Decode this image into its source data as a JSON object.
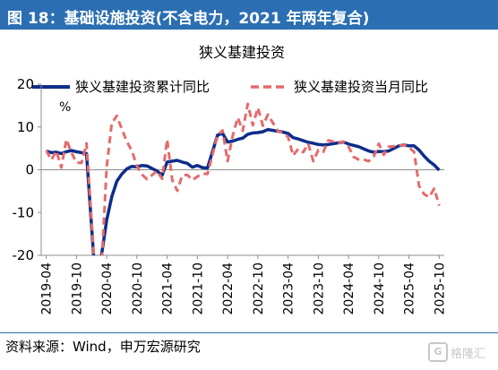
{
  "figure_title": "图 18：基础设施投资(不含电力，2021 年两年复合)",
  "source_note": "资料来源：Wind，申万宏源研究",
  "watermark": {
    "text": "格隆汇",
    "mark": "G"
  },
  "colors": {
    "header_bg": "#2b6fb2",
    "series1": "#0d2d8a",
    "series2": "#e46b6b"
  },
  "chart_data": {
    "type": "line",
    "title": "狭义基建投资",
    "ylabel": "%",
    "ylim": [
      -20,
      20
    ],
    "yticks": [
      -20,
      -10,
      0,
      10,
      20
    ],
    "xlim": [
      "2019-03",
      "2025-11"
    ],
    "xticks": [
      "2019-04",
      "2019-10",
      "2020-04",
      "2020-10",
      "2021-04",
      "2021-10",
      "2022-04",
      "2022-10",
      "2023-04",
      "2023-10",
      "2024-04",
      "2024-10",
      "2025-04",
      "2025-10"
    ],
    "legend_position": "top",
    "series": [
      {
        "name": "狭义基建投资累计同比",
        "style": "solid",
        "x": [
          "2019-04",
          "2019-05",
          "2019-06",
          "2019-07",
          "2019-08",
          "2019-09",
          "2019-10",
          "2019-11",
          "2019-12",
          "2020-02",
          "2020-03",
          "2020-04",
          "2020-05",
          "2020-06",
          "2020-07",
          "2020-08",
          "2020-09",
          "2020-10",
          "2020-11",
          "2020-12",
          "2021-02",
          "2021-03",
          "2021-04",
          "2021-05",
          "2021-06",
          "2021-07",
          "2021-08",
          "2021-09",
          "2021-10",
          "2021-11",
          "2021-12",
          "2022-02",
          "2022-03",
          "2022-04",
          "2022-05",
          "2022-06",
          "2022-07",
          "2022-08",
          "2022-09",
          "2022-10",
          "2022-11",
          "2022-12",
          "2023-02",
          "2023-03",
          "2023-04",
          "2023-05",
          "2023-06",
          "2023-07",
          "2023-08",
          "2023-09",
          "2023-10",
          "2023-11",
          "2023-12",
          "2024-02",
          "2024-03",
          "2024-04",
          "2024-05",
          "2024-06",
          "2024-07",
          "2024-08",
          "2024-09",
          "2024-10",
          "2024-11",
          "2024-12",
          "2025-02",
          "2025-03",
          "2025-04",
          "2025-05",
          "2025-06",
          "2025-07",
          "2025-08",
          "2025-09",
          "2025-10"
        ],
        "values": [
          4.4,
          4.0,
          4.1,
          3.8,
          4.2,
          4.5,
          4.2,
          4.0,
          3.8,
          -30.3,
          -19.7,
          -11.8,
          -6.3,
          -2.7,
          -1.0,
          0.2,
          0.8,
          0.7,
          1.0,
          0.9,
          -0.3,
          -1.3,
          1.8,
          2.0,
          2.2,
          1.8,
          1.5,
          0.6,
          1.0,
          0.5,
          0.4,
          8.1,
          8.5,
          6.5,
          6.7,
          7.1,
          7.4,
          8.3,
          8.6,
          8.7,
          8.9,
          9.4,
          9.0,
          8.8,
          8.5,
          7.5,
          7.2,
          6.8,
          6.4,
          6.2,
          5.9,
          5.8,
          5.9,
          6.3,
          6.5,
          6.0,
          5.7,
          5.4,
          4.9,
          4.4,
          4.1,
          4.3,
          4.2,
          4.4,
          5.6,
          5.8,
          5.6,
          5.6,
          4.6,
          3.2,
          2.0,
          1.1,
          -0.1
        ]
      },
      {
        "name": "狭义基建投资当月同比",
        "style": "dashed",
        "x": [
          "2019-04",
          "2019-05",
          "2019-06",
          "2019-07",
          "2019-08",
          "2019-09",
          "2019-10",
          "2019-11",
          "2019-12",
          "2020-02",
          "2020-03",
          "2020-04",
          "2020-05",
          "2020-06",
          "2020-07",
          "2020-08",
          "2020-09",
          "2020-10",
          "2020-11",
          "2020-12",
          "2021-02",
          "2021-03",
          "2021-04",
          "2021-05",
          "2021-06",
          "2021-07",
          "2021-08",
          "2021-09",
          "2021-10",
          "2021-11",
          "2021-12",
          "2022-02",
          "2022-03",
          "2022-04",
          "2022-05",
          "2022-06",
          "2022-07",
          "2022-08",
          "2022-09",
          "2022-10",
          "2022-11",
          "2022-12",
          "2023-02",
          "2023-03",
          "2023-04",
          "2023-05",
          "2023-06",
          "2023-07",
          "2023-08",
          "2023-09",
          "2023-10",
          "2023-11",
          "2023-12",
          "2024-02",
          "2024-03",
          "2024-04",
          "2024-05",
          "2024-06",
          "2024-07",
          "2024-08",
          "2024-09",
          "2024-10",
          "2024-11",
          "2024-12",
          "2025-02",
          "2025-03",
          "2025-04",
          "2025-05",
          "2025-06",
          "2025-07",
          "2025-08",
          "2025-09",
          "2025-10"
        ],
        "values": [
          4.5,
          2.3,
          4.4,
          0.5,
          7.1,
          4.0,
          1.7,
          1.6,
          6.2,
          -30.3,
          -22.0,
          0.7,
          10.9,
          12.6,
          9.5,
          6.6,
          4.4,
          0.9,
          -1.1,
          -2.2,
          -0.3,
          -2.1,
          7.1,
          -2.4,
          -4.9,
          -1.3,
          -1.2,
          -2.4,
          -1.6,
          -0.9,
          -1.0,
          8.1,
          9.2,
          2.0,
          7.9,
          12.2,
          9.1,
          15.4,
          10.4,
          14.5,
          10.3,
          12.9,
          9.0,
          8.6,
          7.7,
          3.3,
          4.9,
          4.1,
          6.1,
          2.0,
          4.6,
          4.2,
          6.9,
          6.3,
          6.6,
          5.4,
          3.0,
          2.4,
          2.4,
          2.0,
          3.1,
          6.1,
          3.5,
          5.4,
          5.6,
          5.8,
          5.2,
          4.2,
          -3.8,
          -5.7,
          -6.4,
          -4.4,
          -8.4
        ]
      }
    ]
  }
}
